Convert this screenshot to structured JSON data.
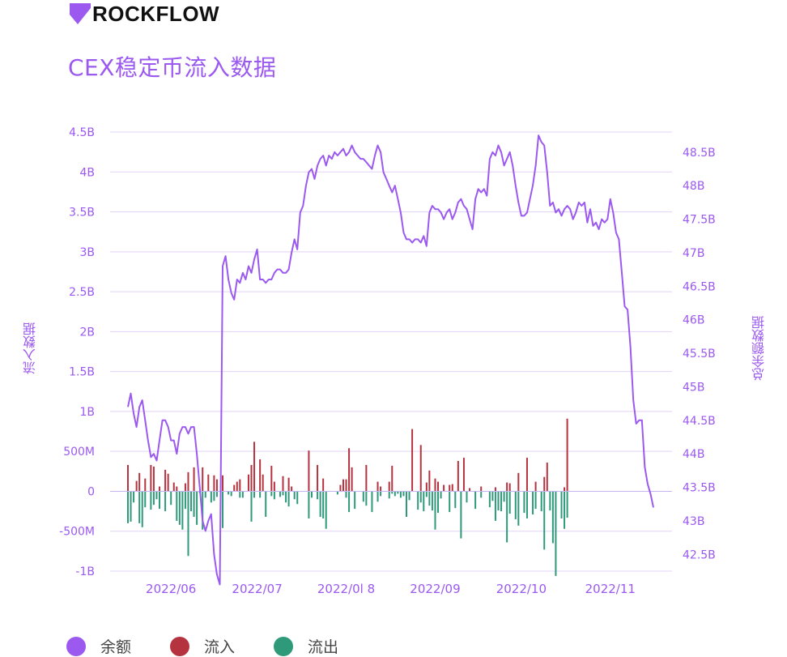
{
  "brand": {
    "logo_text": "ROCKFLOW"
  },
  "colors": {
    "accent": "#9b59f0",
    "inflow": "#b5333f",
    "outflow": "#2e9a7a",
    "balance": "#9b59f0",
    "grid": "#e3d3f8"
  },
  "chart_data": {
    "type": "bar",
    "title": "CEX稳定币流入数据",
    "left_axis": {
      "label": "流入数据",
      "ticks": [
        "4.5B",
        "4B",
        "3.5B",
        "3B",
        "2.5B",
        "2B",
        "1.5B",
        "1B",
        "500M",
        "0",
        "-500M",
        "-1B"
      ],
      "range": [
        -1000000000,
        4500000000
      ]
    },
    "right_axis": {
      "label": "总余额数据",
      "ticks": [
        "48.5B",
        "48B",
        "47.5B",
        "47B",
        "46.5B",
        "46B",
        "45.5B",
        "45B",
        "44.5B",
        "44B",
        "43.5B",
        "43B",
        "42.5B"
      ],
      "range": [
        42.25,
        48.8
      ]
    },
    "x_ticks": [
      "2022/06",
      "2022/07",
      "2022/0l 8",
      "2022/09",
      "2022/10",
      "2022/11"
    ],
    "x_tick_day_index": [
      15,
      45,
      76,
      107,
      137,
      168
    ],
    "legend": [
      {
        "name": "余额",
        "color": "#9b59f0"
      },
      {
        "name": "流入",
        "color": "#b5333f"
      },
      {
        "name": "流出",
        "color": "#2e9a7a"
      }
    ],
    "series": [
      {
        "name": "余额",
        "unit": "B",
        "axis": "right",
        "values": [
          44.7,
          44.9,
          44.6,
          44.4,
          44.7,
          44.8,
          44.5,
          44.2,
          43.95,
          44.0,
          43.9,
          44.2,
          44.5,
          44.5,
          44.4,
          44.2,
          44.2,
          44.0,
          44.3,
          44.4,
          44.4,
          44.3,
          44.4,
          44.4,
          44.0,
          43.5,
          43.0,
          42.85,
          43.0,
          43.1,
          42.5,
          42.2,
          42.05,
          46.8,
          46.95,
          46.6,
          46.4,
          46.3,
          46.6,
          46.55,
          46.7,
          46.6,
          46.8,
          46.7,
          46.9,
          47.05,
          46.6,
          46.6,
          46.55,
          46.6,
          46.6,
          46.7,
          46.75,
          46.75,
          46.7,
          46.7,
          46.75,
          47.0,
          47.2,
          47.05,
          47.6,
          47.7,
          48.0,
          48.2,
          48.25,
          48.1,
          48.3,
          48.4,
          48.45,
          48.3,
          48.45,
          48.4,
          48.5,
          48.45,
          48.5,
          48.55,
          48.45,
          48.5,
          48.6,
          48.5,
          48.45,
          48.4,
          48.4,
          48.35,
          48.3,
          48.25,
          48.45,
          48.6,
          48.5,
          48.2,
          48.1,
          48.0,
          47.9,
          48.0,
          47.8,
          47.6,
          47.3,
          47.2,
          47.2,
          47.15,
          47.2,
          47.2,
          47.15,
          47.25,
          47.1,
          47.6,
          47.7,
          47.65,
          47.65,
          47.6,
          47.5,
          47.6,
          47.65,
          47.5,
          47.6,
          47.75,
          47.8,
          47.7,
          47.65,
          47.5,
          47.35,
          47.8,
          47.95,
          47.9,
          47.95,
          47.85,
          48.4,
          48.5,
          48.45,
          48.6,
          48.5,
          48.3,
          48.4,
          48.5,
          48.3,
          48.0,
          47.75,
          47.55,
          47.55,
          47.6,
          47.8,
          48.0,
          48.3,
          48.75,
          48.65,
          48.6,
          48.2,
          47.7,
          47.75,
          47.6,
          47.65,
          47.55,
          47.65,
          47.7,
          47.65,
          47.5,
          47.6,
          47.75,
          47.7,
          47.75,
          47.45,
          47.65,
          47.4,
          47.45,
          47.35,
          47.5,
          47.45,
          47.5,
          47.8,
          47.6,
          47.3,
          47.2,
          46.7,
          46.2,
          46.15,
          45.6,
          44.8,
          44.45,
          44.5,
          44.5,
          43.8,
          43.55,
          43.4,
          43.2
        ]
      },
      {
        "name": "流入",
        "unit": "M",
        "axis": "left",
        "values": [
          330,
          0,
          0,
          130,
          230,
          0,
          160,
          0,
          330,
          310,
          0,
          60,
          0,
          270,
          220,
          0,
          110,
          60,
          0,
          0,
          100,
          240,
          0,
          300,
          0,
          0,
          300,
          0,
          210,
          0,
          200,
          150,
          0,
          200,
          0,
          0,
          0,
          80,
          120,
          150,
          0,
          0,
          210,
          330,
          620,
          0,
          400,
          210,
          0,
          0,
          320,
          120,
          0,
          0,
          190,
          0,
          170,
          60,
          0,
          0,
          0,
          0,
          0,
          510,
          0,
          0,
          330,
          0,
          160,
          0,
          0,
          0,
          0,
          0,
          80,
          150,
          150,
          540,
          300,
          0,
          0,
          0,
          0,
          330,
          0,
          0,
          0,
          120,
          60,
          0,
          0,
          120,
          320,
          0,
          0,
          0,
          0,
          0,
          0,
          780,
          0,
          0,
          580,
          0,
          110,
          260,
          0,
          160,
          120,
          0,
          80,
          0,
          80,
          90,
          0,
          380,
          0,
          420,
          0,
          40,
          0,
          0,
          0,
          60,
          0,
          0,
          0,
          0,
          50,
          0,
          0,
          0,
          110,
          100,
          0,
          0,
          230,
          0,
          0,
          420,
          0,
          0,
          120,
          0,
          0,
          180,
          360,
          0,
          0,
          0,
          0,
          0,
          50,
          910
        ]
      },
      {
        "name": "流出",
        "unit": "M",
        "axis": "left",
        "values": [
          -400,
          -380,
          -140,
          0,
          -400,
          -450,
          -200,
          0,
          -230,
          -170,
          -100,
          -220,
          0,
          -250,
          0,
          -170,
          0,
          -370,
          -420,
          -480,
          -220,
          -810,
          -250,
          -320,
          -420,
          -20,
          -480,
          -80,
          0,
          -140,
          -120,
          -70,
          0,
          -460,
          0,
          -40,
          -60,
          0,
          0,
          -80,
          -80,
          0,
          0,
          -380,
          -80,
          0,
          -80,
          0,
          -320,
          0,
          -60,
          -100,
          0,
          -70,
          -50,
          -140,
          -190,
          0,
          -100,
          -160,
          0,
          0,
          0,
          -340,
          -80,
          0,
          -100,
          -320,
          -340,
          -470,
          0,
          0,
          0,
          -40,
          0,
          0,
          -80,
          -260,
          0,
          -220,
          0,
          0,
          -130,
          -180,
          0,
          -260,
          0,
          -130,
          -60,
          0,
          0,
          -90,
          -30,
          -60,
          -30,
          -80,
          -60,
          -320,
          -110,
          0,
          0,
          -230,
          -140,
          -250,
          -70,
          -180,
          -240,
          -480,
          -270,
          -90,
          0,
          0,
          -260,
          0,
          -210,
          0,
          -590,
          0,
          -140,
          0,
          0,
          -220,
          0,
          -80,
          0,
          0,
          -200,
          -120,
          -370,
          -240,
          -250,
          -130,
          -640,
          -280,
          0,
          -350,
          -430,
          0,
          -270,
          -340,
          0,
          -290,
          -220,
          0,
          -250,
          -730,
          0,
          -240,
          -650,
          -1060,
          0,
          -340,
          -470,
          -330,
          0,
          0
        ]
      }
    ]
  }
}
